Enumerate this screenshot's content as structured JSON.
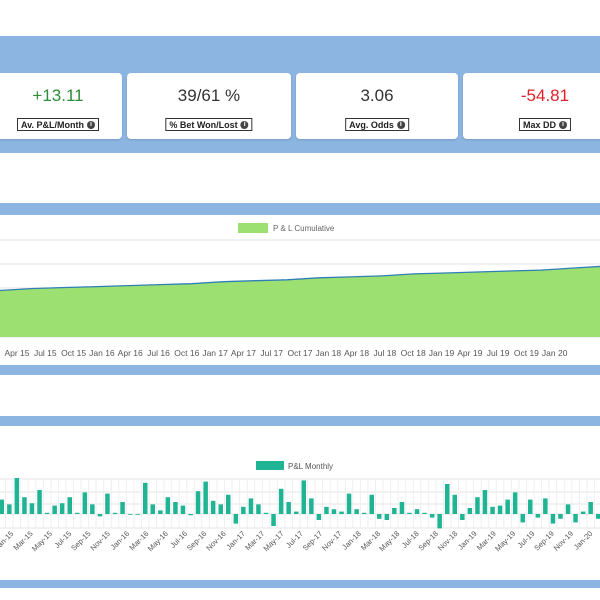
{
  "stats": [
    {
      "value": "+13.11",
      "label": "Av. P&L/Month",
      "color": "#2e8b3a"
    },
    {
      "value": "39/61 %",
      "label": "% Bet Won/Lost",
      "color": "#333333"
    },
    {
      "value": "3.06",
      "label": "Avg. Odds",
      "color": "#333333"
    },
    {
      "value": "-54.81",
      "label": "Max DD",
      "color": "#e0212d"
    }
  ],
  "icons": {
    "info": "info-icon"
  },
  "colors": {
    "band": "#8db5e2",
    "area_fill": "#9be070",
    "area_line": "#2f7fb5",
    "bar": "#1fb494"
  },
  "chart_data": [
    {
      "type": "area",
      "legend": [
        "P & L Cumulative"
      ],
      "x_ticks": [
        "Apr 15",
        "Jul 15",
        "Oct 15",
        "Jan 16",
        "Apr 16",
        "Jul 16",
        "Oct 16",
        "Jan 17",
        "Apr 17",
        "Jul 17",
        "Oct 17",
        "Jan 18",
        "Apr 18",
        "Jul 18",
        "Oct 18",
        "Jan 19",
        "Apr 19",
        "Jul 19",
        "Oct 19",
        "Jan 20"
      ],
      "series": [
        {
          "name": "P & L Cumulative",
          "values": [
            47,
            48,
            50,
            51,
            52,
            53,
            54,
            55,
            57,
            58,
            59,
            61,
            62,
            63,
            65,
            66,
            67,
            68,
            69,
            71,
            73
          ]
        }
      ]
    },
    {
      "type": "bar",
      "legend": [
        "P&L Monthly"
      ],
      "x_ticks": [
        "Jan-15",
        "Mar-15",
        "May-15",
        "Jul-15",
        "Sep-15",
        "Nov-15",
        "Jan-16",
        "Mar-16",
        "May-16",
        "Jul-16",
        "Sep-16",
        "Nov-16",
        "Jan-17",
        "Mar-17",
        "May-17",
        "Jul-17",
        "Sep-17",
        "Nov-17",
        "Jan-18",
        "Mar-18",
        "May-18",
        "Jul-18",
        "Sep-18",
        "Nov-18",
        "Jan-19",
        "Mar-19",
        "May-19",
        "Jul-19",
        "Sep-19",
        "Nov-19",
        "Jan-20"
      ],
      "series": [
        {
          "name": "P&L Monthly",
          "values": [
            12,
            8,
            30,
            14,
            9,
            20,
            1,
            7,
            9,
            14,
            1,
            18,
            8,
            -2,
            17,
            1,
            10,
            0,
            0,
            26,
            8,
            3,
            14,
            10,
            7,
            -1,
            19,
            27,
            11,
            8,
            16,
            -8,
            6,
            13,
            8,
            1,
            -10,
            21,
            10,
            2,
            28,
            13,
            -5,
            6,
            4,
            2,
            17,
            4,
            1,
            16,
            -4,
            -5,
            5,
            10,
            1,
            4,
            1,
            -3,
            -12,
            25,
            16,
            -5,
            5,
            14,
            20,
            6,
            7,
            12,
            18,
            -7,
            12,
            -3,
            13,
            -8,
            -4,
            8,
            -7,
            2,
            10,
            -4
          ]
        }
      ]
    }
  ]
}
